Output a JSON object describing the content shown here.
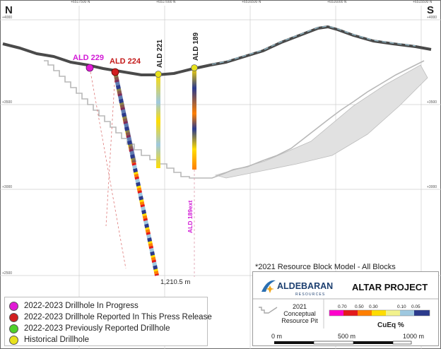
{
  "directions": {
    "north": "N",
    "south": "S"
  },
  "colors": {
    "in_progress": "#e11ad6",
    "reported": "#d21f1f",
    "previously_reported": "#4fd12a",
    "historical": "#e8e21c",
    "pit_outline": "#b5b5b5",
    "ramp": [
      "#ff00cc",
      "#e31a1c",
      "#ff7f00",
      "#ffdd00",
      "#f2f28c",
      "#9ec8e0",
      "#2b3a8c"
    ]
  },
  "drillholes": [
    {
      "name": "ALD 229",
      "status": "in_progress"
    },
    {
      "name": "ALD 224",
      "status": "reported"
    },
    {
      "name": "ALD 221",
      "status": "historical"
    },
    {
      "name": "ALD 189",
      "status": "historical"
    }
  ],
  "extension_label": "ALD 189ext",
  "depth_label": "1,210.5 m",
  "easting_labels": [
    "+6517500 N",
    "+6517000 N",
    "+6516500 N",
    "+6516000 N",
    "+6515500 N"
  ],
  "elevation_labels": [
    "+4000",
    "+3500",
    "+3000",
    "+2500"
  ],
  "legend": [
    {
      "label": "2022-2023 Drillhole In Progress",
      "color_key": "in_progress"
    },
    {
      "label": "2022-2023 Drillhole Reported In This Press Release",
      "color_key": "reported"
    },
    {
      "label": "2022-2023 Previously Reported Drillhole",
      "color_key": "previously_reported"
    },
    {
      "label": "Historical Drillhole",
      "color_key": "historical"
    }
  ],
  "resource_caption": "*2021 Resource Block Model - All Blocks",
  "titlebox": {
    "company": "ALDEBARAN",
    "company_sub": "RESOURCES",
    "project": "ALTAR PROJECT",
    "pit_year": "2021",
    "pit_label": "Conceptual Resource Pit",
    "grade_ticks": [
      "0.70",
      "0.50",
      "0.30",
      "0.10",
      "0.05"
    ],
    "grade_unit": "CuEq %",
    "scale_labels": [
      "0 m",
      "500 m",
      "1000 m"
    ]
  }
}
